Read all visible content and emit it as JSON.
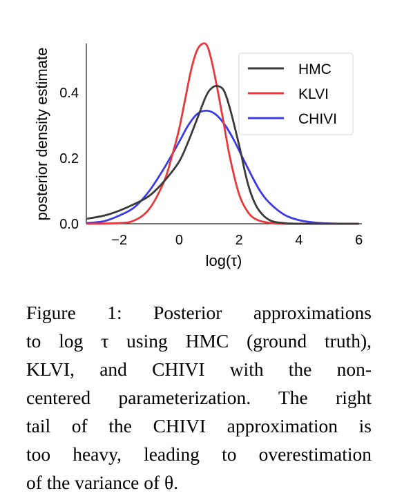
{
  "chart_data": {
    "type": "line",
    "xlabel": "log(τ)",
    "ylabel": "posterior density estimate",
    "xlim": [
      -3.1,
      6.1
    ],
    "ylim": [
      0,
      0.55
    ],
    "x_ticks": [
      -2,
      0,
      2,
      4,
      6
    ],
    "x_tick_labels": [
      "−2",
      "0",
      "2",
      "4",
      "6"
    ],
    "y_ticks": [
      0.0,
      0.2,
      0.4
    ],
    "y_tick_labels": [
      "0.0",
      "0.2",
      "0.4"
    ],
    "grid": false,
    "legend": "top-right",
    "series": [
      {
        "name": "HMC",
        "color": "#3a3a3a",
        "x": [
          -3.1,
          -2.5,
          -2.0,
          -1.5,
          -1.0,
          -0.5,
          0.0,
          0.3,
          0.6,
          0.9,
          1.1,
          1.3,
          1.5,
          1.7,
          2.0,
          2.3,
          2.6,
          3.0,
          3.5,
          4.0,
          4.5,
          5.0,
          6.0
        ],
        "y": [
          0.015,
          0.025,
          0.04,
          0.06,
          0.085,
          0.13,
          0.19,
          0.25,
          0.32,
          0.39,
          0.415,
          0.42,
          0.405,
          0.35,
          0.24,
          0.12,
          0.05,
          0.012,
          0.002,
          0.0,
          0.0,
          0.0,
          0.0
        ]
      },
      {
        "name": "KLVI",
        "color": "#e8383c",
        "x": [
          -3.1,
          -2.0,
          -1.5,
          -1.0,
          -0.5,
          -0.2,
          0.0,
          0.2,
          0.4,
          0.6,
          0.8,
          0.95,
          1.1,
          1.3,
          1.5,
          1.7,
          2.0,
          2.3,
          2.6,
          3.0,
          3.5,
          4.0,
          6.0
        ],
        "y": [
          0.0,
          0.002,
          0.01,
          0.045,
          0.13,
          0.22,
          0.29,
          0.38,
          0.47,
          0.53,
          0.55,
          0.54,
          0.49,
          0.4,
          0.3,
          0.2,
          0.09,
          0.035,
          0.012,
          0.003,
          0.0,
          0.0,
          0.0
        ]
      },
      {
        "name": "CHIVI",
        "color": "#3a3ae8",
        "x": [
          -3.1,
          -2.5,
          -2.0,
          -1.5,
          -1.0,
          -0.5,
          0.0,
          0.3,
          0.6,
          0.9,
          1.2,
          1.5,
          1.8,
          2.1,
          2.4,
          2.7,
          3.0,
          3.5,
          4.0,
          4.5,
          5.0,
          5.5,
          6.0
        ],
        "y": [
          0.002,
          0.008,
          0.025,
          0.05,
          0.1,
          0.17,
          0.25,
          0.3,
          0.335,
          0.345,
          0.335,
          0.305,
          0.26,
          0.205,
          0.15,
          0.1,
          0.065,
          0.028,
          0.011,
          0.004,
          0.001,
          0.0,
          0.0
        ]
      }
    ]
  },
  "caption": {
    "lines": [
      "Figure 1: Posterior approximations",
      "to log τ using HMC (ground truth),",
      "KLVI, and CHIVI with the non-",
      "centered parameterization. The right",
      "tail of the CHIVI approximation is",
      "too heavy, leading to overestimation",
      "of the variance of θ."
    ]
  }
}
